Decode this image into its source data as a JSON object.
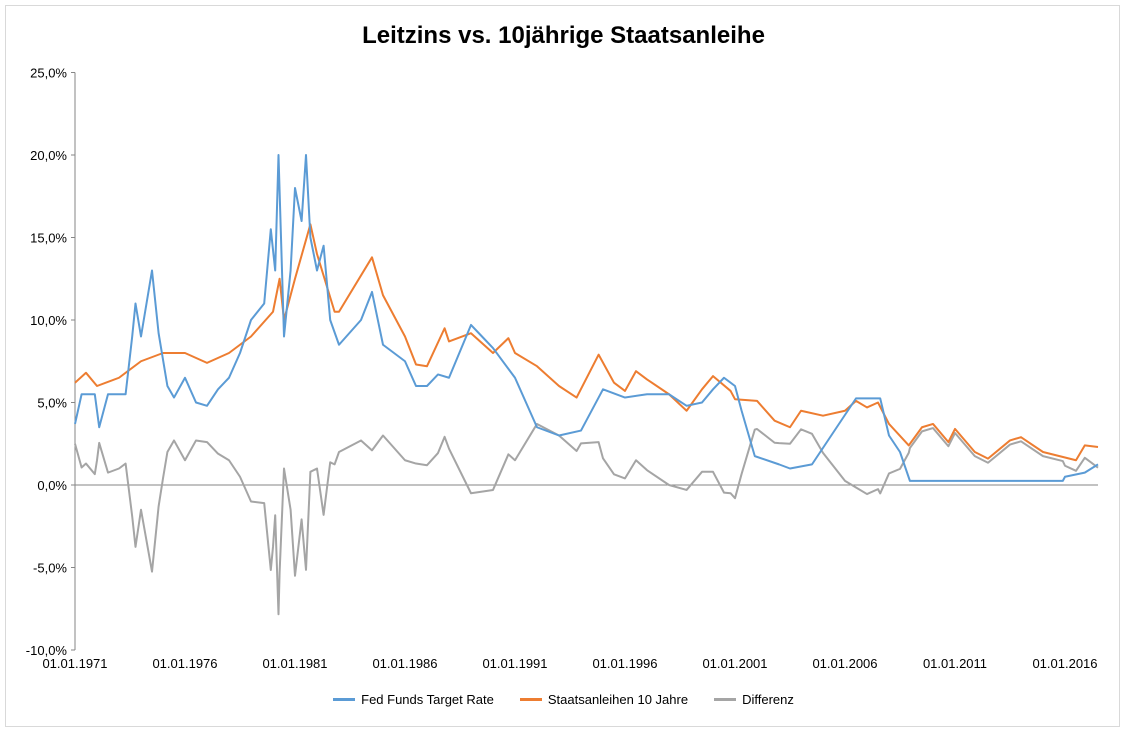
{
  "chart_data": {
    "type": "line",
    "title": "Leitzins vs. 10jährige Staatsanleihe",
    "xlabel": "",
    "ylabel": "",
    "ylim": [
      -10,
      25
    ],
    "xlim": [
      1971.0,
      2017.5
    ],
    "yticks": [
      "-10,0%",
      "-5,0%",
      "0,0%",
      "5,0%",
      "10,0%",
      "15,0%",
      "20,0%",
      "25,0%"
    ],
    "ytick_values": [
      -10,
      -5,
      0,
      5,
      10,
      15,
      20,
      25
    ],
    "xticks": [
      "01.01.1971",
      "01.01.1976",
      "01.01.1981",
      "01.01.1986",
      "01.01.1991",
      "01.01.1996",
      "01.01.2001",
      "01.01.2006",
      "01.01.2011",
      "01.01.2016"
    ],
    "xtick_values": [
      1971,
      1976,
      1981,
      1986,
      1991,
      1996,
      2001,
      2006,
      2011,
      2016
    ],
    "grid": false,
    "legend_position": "bottom",
    "series": [
      {
        "name": "Fed Funds Target Rate",
        "color": "#5B9BD5",
        "x": [
          1971.0,
          1971.3,
          1971.9,
          1972.1,
          1972.5,
          1973.3,
          1973.6,
          1973.75,
          1974.0,
          1974.5,
          1974.8,
          1975.2,
          1975.5,
          1976.0,
          1976.5,
          1977.0,
          1977.5,
          1978.0,
          1978.5,
          1979.0,
          1979.6,
          1979.9,
          1980.1,
          1980.25,
          1980.5,
          1980.8,
          1981.0,
          1981.3,
          1981.5,
          1981.7,
          1982.0,
          1982.3,
          1982.6,
          1983.0,
          1984.0,
          1984.5,
          1985.0,
          1986.0,
          1986.5,
          1987.0,
          1987.5,
          1988.0,
          1989.0,
          1989.5,
          1990.0,
          1991.0,
          1992.0,
          1993.0,
          1994.0,
          1995.0,
          1996.0,
          1997.0,
          1998.0,
          1998.8,
          1999.5,
          2000.0,
          2000.5,
          2001.0,
          2001.3,
          2001.9,
          2003.0,
          2003.5,
          2004.5,
          2005.5,
          2006.5,
          2007.6,
          2008.0,
          2008.5,
          2008.95,
          2015.9,
          2016.0,
          2016.9,
          2017.2,
          2017.5
        ],
        "values": [
          3.7,
          5.5,
          5.5,
          3.5,
          5.5,
          5.5,
          9,
          11,
          9,
          13,
          9.2,
          6,
          5.3,
          6.5,
          5,
          4.8,
          5.8,
          6.5,
          8,
          10,
          11,
          15.5,
          13,
          20,
          9,
          13,
          18,
          16,
          20,
          15,
          13,
          14.5,
          10,
          8.5,
          10,
          11.7,
          8.5,
          7.5,
          6,
          6,
          6.7,
          6.5,
          9.7,
          9,
          8.3,
          6.5,
          3.5,
          3,
          3.3,
          5.8,
          5.3,
          5.5,
          5.5,
          4.8,
          5,
          5.8,
          6.5,
          6,
          4.5,
          1.75,
          1.25,
          1,
          1.25,
          3.25,
          5.25,
          5.25,
          3,
          2,
          0.25,
          0.25,
          0.5,
          0.75,
          1.0,
          1.25
        ]
      },
      {
        "name": "Staatsanleihen 10 Jahre",
        "color": "#ED7D31",
        "x": [
          1971.0,
          1971.5,
          1972.0,
          1973.0,
          1974.0,
          1975.0,
          1976.0,
          1977.0,
          1978.0,
          1979.0,
          1980.0,
          1980.3,
          1980.5,
          1981.0,
          1981.7,
          1982.0,
          1982.8,
          1983.0,
          1984.5,
          1985.0,
          1986.0,
          1986.5,
          1987.0,
          1987.8,
          1988.0,
          1989.0,
          1990.0,
          1990.7,
          1991.0,
          1992.0,
          1993.0,
          1993.8,
          1994.8,
          1995.5,
          1996.0,
          1996.5,
          1997.0,
          1998.0,
          1998.8,
          1999.5,
          2000.0,
          2000.8,
          2001.0,
          2002.0,
          2002.8,
          2003.5,
          2004.0,
          2005.0,
          2006.0,
          2006.5,
          2007.0,
          2007.5,
          2008.0,
          2008.9,
          2009.5,
          2010.0,
          2010.7,
          2011.0,
          2011.9,
          2012.5,
          2013.5,
          2014.0,
          2015.0,
          2016.5,
          2016.9,
          2017.5
        ],
        "values": [
          6.2,
          6.8,
          6,
          6.5,
          7.5,
          8,
          8,
          7.4,
          8,
          9,
          10.5,
          12.5,
          10,
          12.5,
          15.8,
          14,
          10.5,
          10.5,
          13.8,
          11.5,
          9,
          7.3,
          7.2,
          9.5,
          8.7,
          9.2,
          8,
          8.9,
          8,
          7.2,
          6,
          5.3,
          7.9,
          6.2,
          5.7,
          6.9,
          6.4,
          5.5,
          4.5,
          5.8,
          6.6,
          5.7,
          5.2,
          5.1,
          3.9,
          3.5,
          4.5,
          4.2,
          4.5,
          5.1,
          4.7,
          5,
          3.7,
          2.4,
          3.5,
          3.7,
          2.6,
          3.4,
          2,
          1.6,
          2.7,
          2.9,
          2,
          1.5,
          2.4,
          2.3
        ]
      },
      {
        "name": "Differenz",
        "color": "#A5A5A5",
        "derived": "Staatsanleihen 10 Jahre minus Fed Funds Target Rate"
      }
    ]
  }
}
